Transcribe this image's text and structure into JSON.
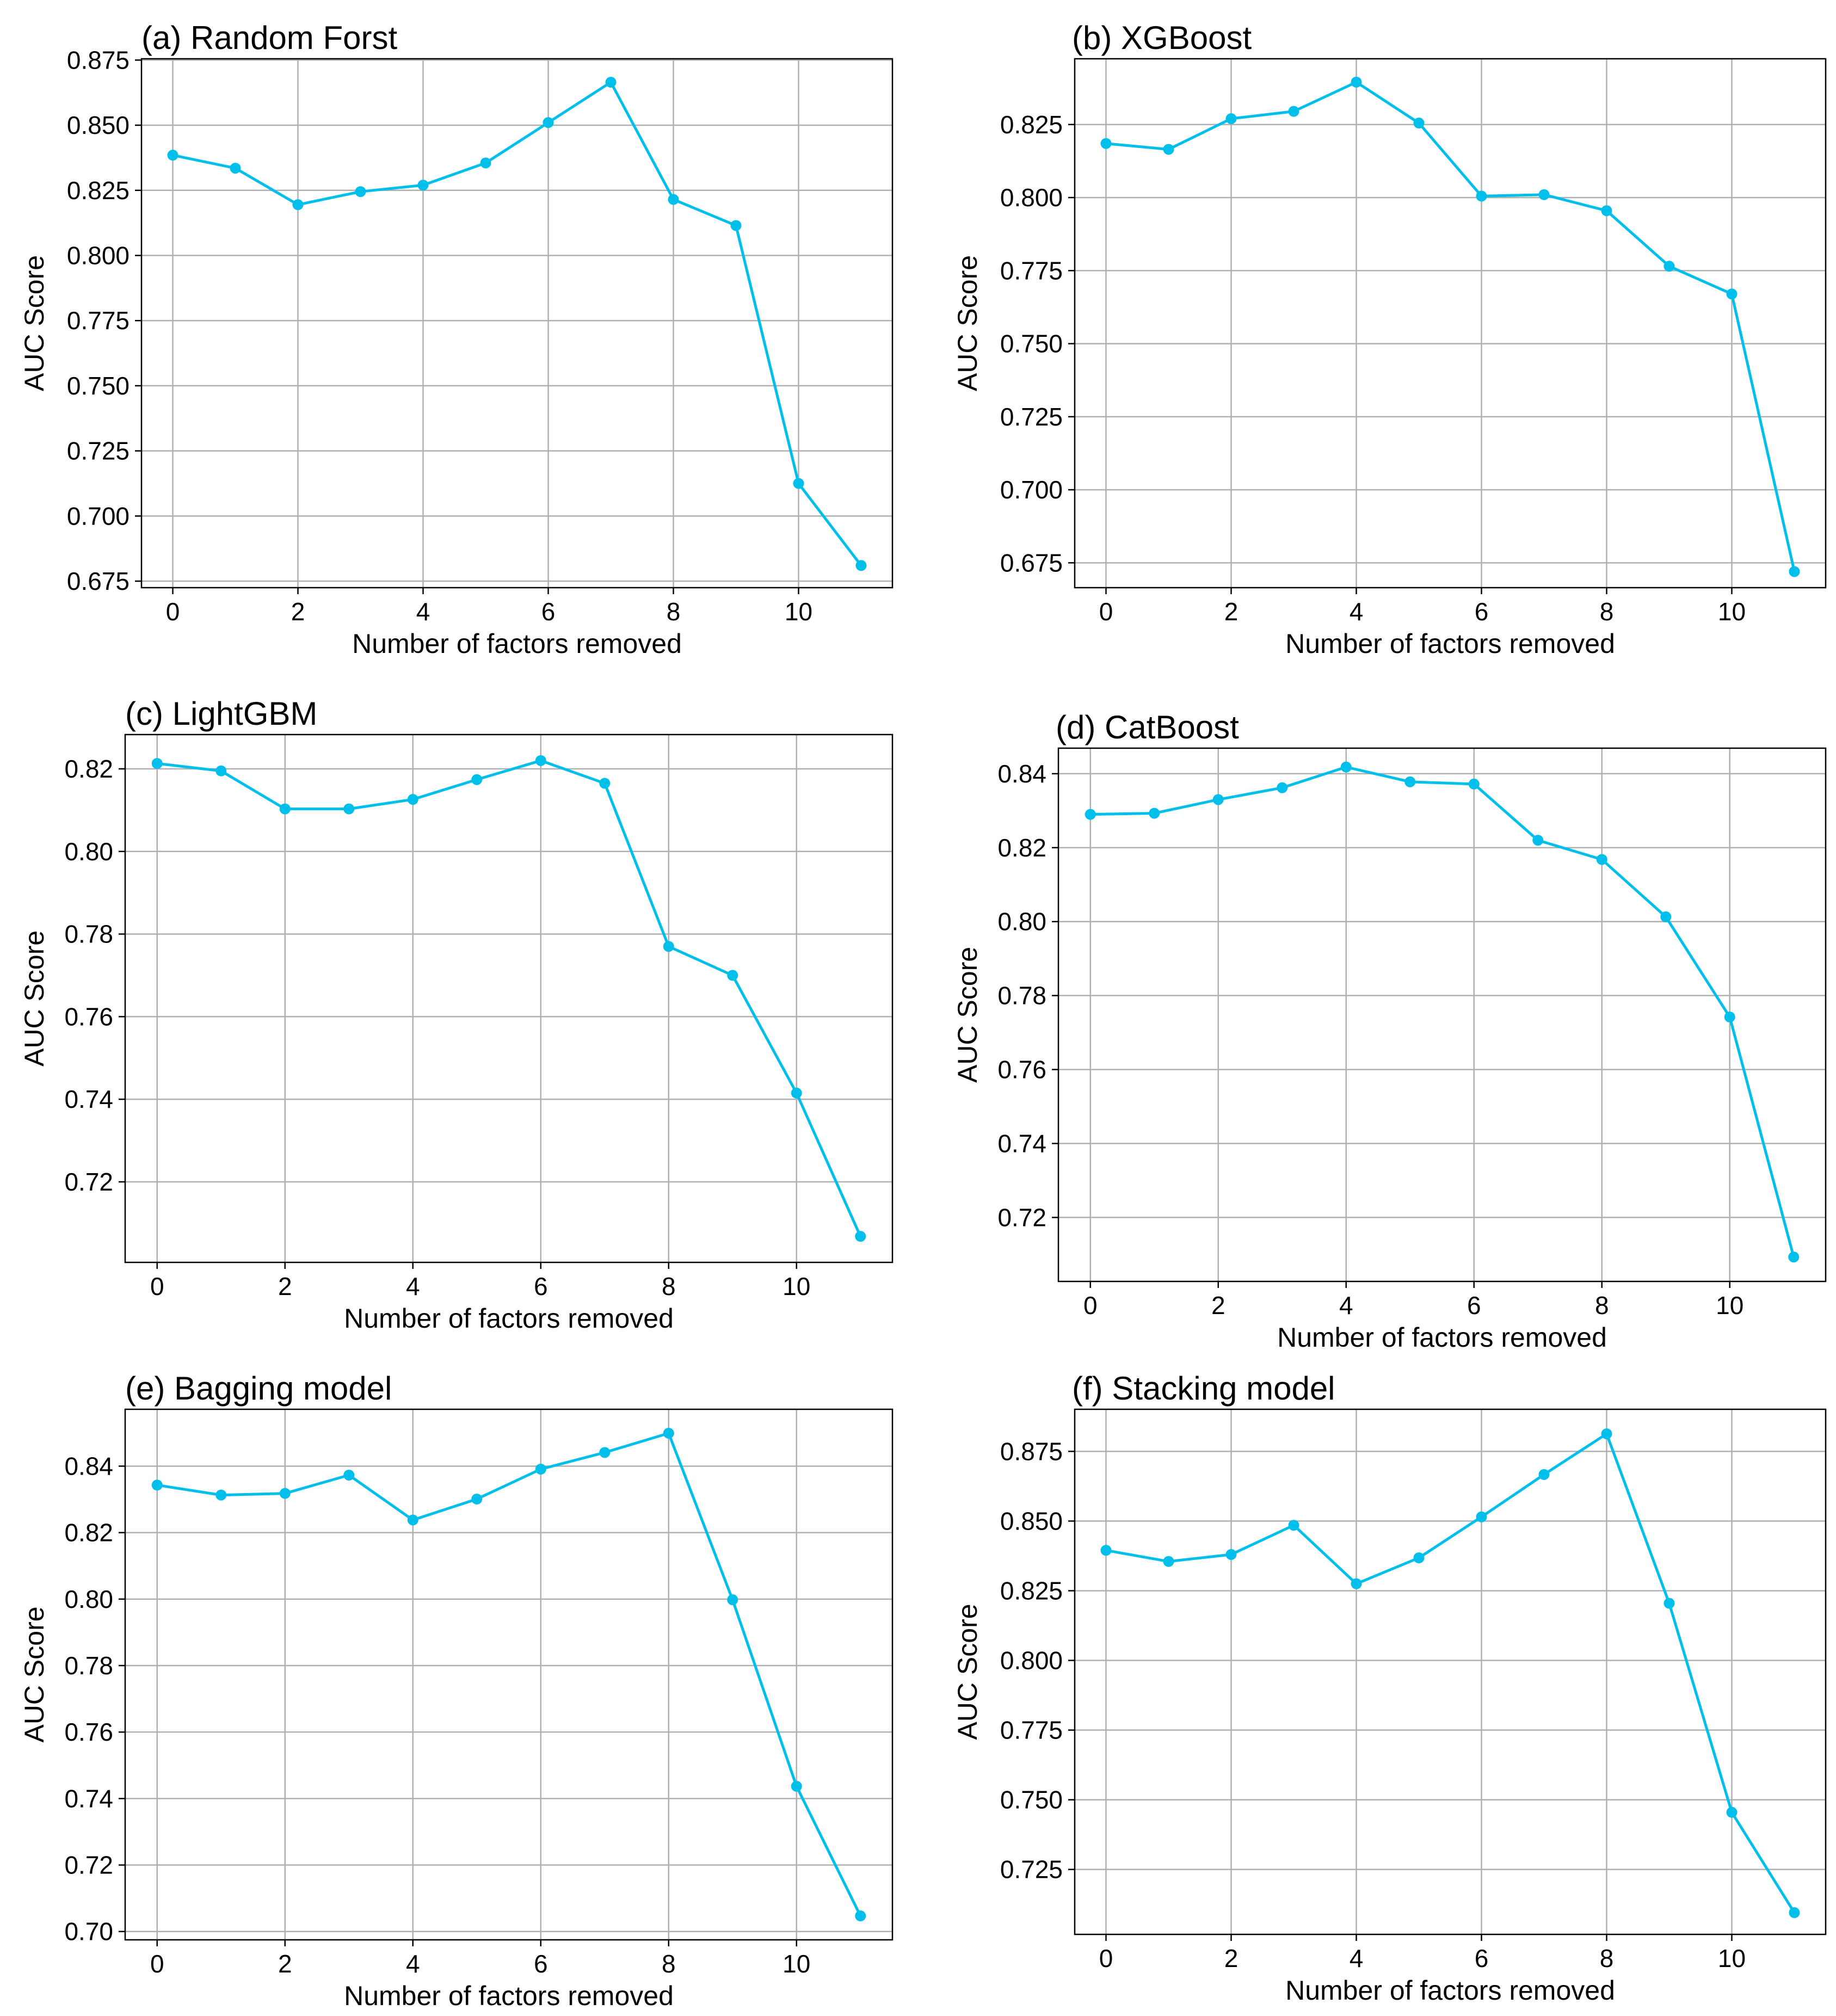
{
  "chart_data": [
    {
      "type": "line",
      "title": "(a) Random Forst",
      "xlabel": "Number of factors removed",
      "ylabel": "AUC Score",
      "x": [
        0,
        1,
        2,
        3,
        4,
        5,
        6,
        7,
        8,
        9,
        10,
        11
      ],
      "series": [
        {
          "name": "AUC",
          "values": [
            0.8385,
            0.8335,
            0.8195,
            0.8245,
            0.827,
            0.8355,
            0.851,
            0.8665,
            0.8215,
            0.8115,
            0.7125,
            0.681
          ]
        }
      ],
      "ylim": [
        0.6725,
        0.8755
      ],
      "xlim": [
        -0.5,
        11.5
      ],
      "yticks": [
        0.675,
        0.7,
        0.725,
        0.75,
        0.775,
        0.8,
        0.825,
        0.85,
        0.875
      ],
      "ytick_labels": [
        "0.675",
        "0.700",
        "0.725",
        "0.750",
        "0.775",
        "0.800",
        "0.825",
        "0.850",
        "0.875"
      ],
      "xticks": [
        0,
        2,
        4,
        6,
        8,
        10
      ],
      "xtick_labels": [
        "0",
        "2",
        "4",
        "6",
        "8",
        "10"
      ],
      "grid": true,
      "color": "#00bfeb"
    },
    {
      "type": "line",
      "title": "(b) XGBoost",
      "xlabel": "Number of factors removed",
      "ylabel": "AUC Score",
      "x": [
        0,
        1,
        2,
        3,
        4,
        5,
        6,
        7,
        8,
        9,
        10,
        11
      ],
      "series": [
        {
          "name": "AUC",
          "values": [
            0.8185,
            0.8165,
            0.827,
            0.8295,
            0.8395,
            0.8255,
            0.8005,
            0.801,
            0.7955,
            0.7765,
            0.767,
            0.672
          ]
        }
      ],
      "ylim": [
        0.6665,
        0.8475
      ],
      "xlim": [
        -0.5,
        11.5
      ],
      "yticks": [
        0.675,
        0.7,
        0.725,
        0.75,
        0.775,
        0.8,
        0.825
      ],
      "ytick_labels": [
        "0.675",
        "0.700",
        "0.725",
        "0.750",
        "0.775",
        "0.800",
        "0.825"
      ],
      "xticks": [
        0,
        2,
        4,
        6,
        8,
        10
      ],
      "xtick_labels": [
        "0",
        "2",
        "4",
        "6",
        "8",
        "10"
      ],
      "grid": true,
      "color": "#00bfeb"
    },
    {
      "type": "line",
      "title": "(c) LightGBM",
      "xlabel": "Number of factors removed",
      "ylabel": "AUC Score",
      "x": [
        0,
        1,
        2,
        3,
        4,
        5,
        6,
        7,
        8,
        9,
        10,
        11
      ],
      "series": [
        {
          "name": "AUC",
          "values": [
            0.8213,
            0.8195,
            0.8103,
            0.8103,
            0.8126,
            0.8174,
            0.822,
            0.8165,
            0.777,
            0.77,
            0.7415,
            0.7068
          ]
        }
      ],
      "ylim": [
        0.7005,
        0.8283
      ],
      "xlim": [
        -0.5,
        11.5
      ],
      "yticks": [
        0.72,
        0.74,
        0.76,
        0.78,
        0.8,
        0.82
      ],
      "ytick_labels": [
        "0.72",
        "0.74",
        "0.76",
        "0.78",
        "0.80",
        "0.82"
      ],
      "xticks": [
        0,
        2,
        4,
        6,
        8,
        10
      ],
      "xtick_labels": [
        "0",
        "2",
        "4",
        "6",
        "8",
        "10"
      ],
      "grid": true,
      "color": "#00bfeb"
    },
    {
      "type": "line",
      "title": "(d) CatBoost",
      "xlabel": "Number of factors removed",
      "ylabel": "AUC Score",
      "x": [
        0,
        1,
        2,
        3,
        4,
        5,
        6,
        7,
        8,
        9,
        10,
        11
      ],
      "series": [
        {
          "name": "AUC",
          "values": [
            0.829,
            0.8293,
            0.833,
            0.8362,
            0.8418,
            0.8378,
            0.8372,
            0.822,
            0.8168,
            0.8013,
            0.7742,
            0.7093
          ]
        }
      ],
      "ylim": [
        0.7027,
        0.8469
      ],
      "xlim": [
        -0.5,
        11.5
      ],
      "yticks": [
        0.72,
        0.74,
        0.76,
        0.78,
        0.8,
        0.82,
        0.84
      ],
      "ytick_labels": [
        "0.72",
        "0.74",
        "0.76",
        "0.78",
        "0.80",
        "0.82",
        "0.84"
      ],
      "xticks": [
        0,
        2,
        4,
        6,
        8,
        10
      ],
      "xtick_labels": [
        "0",
        "2",
        "4",
        "6",
        "8",
        "10"
      ],
      "grid": true,
      "color": "#00bfeb"
    },
    {
      "type": "line",
      "title": "(e) Bagging model",
      "xlabel": "Number of factors removed",
      "ylabel": "AUC Score",
      "x": [
        0,
        1,
        2,
        3,
        4,
        5,
        6,
        7,
        8,
        9,
        10,
        11
      ],
      "series": [
        {
          "name": "AUC",
          "values": [
            0.8343,
            0.8313,
            0.8318,
            0.8373,
            0.8238,
            0.8301,
            0.8391,
            0.8441,
            0.8499,
            0.7998,
            0.7437,
            0.7047
          ]
        }
      ],
      "ylim": [
        0.6975,
        0.8571
      ],
      "xlim": [
        -0.5,
        11.5
      ],
      "yticks": [
        0.7,
        0.72,
        0.74,
        0.76,
        0.78,
        0.8,
        0.82,
        0.84
      ],
      "ytick_labels": [
        "0.70",
        "0.72",
        "0.74",
        "0.76",
        "0.78",
        "0.80",
        "0.82",
        "0.84"
      ],
      "xticks": [
        0,
        2,
        4,
        6,
        8,
        10
      ],
      "xtick_labels": [
        "0",
        "2",
        "4",
        "6",
        "8",
        "10"
      ],
      "grid": true,
      "color": "#00bfeb"
    },
    {
      "type": "line",
      "title": "(f) Stacking model",
      "xlabel": "Number of factors removed",
      "ylabel": "AUC Score",
      "x": [
        0,
        1,
        2,
        3,
        4,
        5,
        6,
        7,
        8,
        9,
        10,
        11
      ],
      "series": [
        {
          "name": "AUC",
          "values": [
            0.8395,
            0.8355,
            0.838,
            0.8485,
            0.8275,
            0.8368,
            0.8515,
            0.8667,
            0.8813,
            0.8205,
            0.7455,
            0.7095
          ]
        }
      ],
      "ylim": [
        0.7017,
        0.8901
      ],
      "xlim": [
        -0.5,
        11.5
      ],
      "yticks": [
        0.725,
        0.75,
        0.775,
        0.8,
        0.825,
        0.85,
        0.875
      ],
      "ytick_labels": [
        "0.725",
        "0.750",
        "0.775",
        "0.800",
        "0.825",
        "0.850",
        "0.875"
      ],
      "xticks": [
        0,
        2,
        4,
        6,
        8,
        10
      ],
      "xtick_labels": [
        "0",
        "2",
        "4",
        "6",
        "8",
        "10"
      ],
      "grid": true,
      "color": "#00bfeb"
    }
  ]
}
